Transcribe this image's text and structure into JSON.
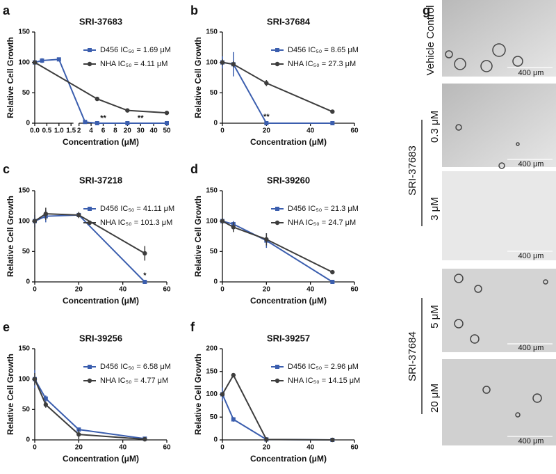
{
  "chart_data": [
    {
      "type": "line",
      "panel": "a",
      "title": "SRI-37683",
      "xlabel": "Concentration (μM)",
      "ylabel": "Relative Cell Growth",
      "ylim": [
        0,
        150
      ],
      "yticks": [
        0,
        50,
        100,
        150
      ],
      "x_segments": [
        {
          "xlim": [
            0,
            1.6
          ],
          "xticks": [
            {
              "value": 0,
              "label": "0.0"
            },
            0.5,
            {
              "value": 1,
              "label": "1.0"
            },
            1.5
          ]
        },
        {
          "xlim": [
            2,
            8
          ],
          "xticks": [
            2,
            4,
            6,
            8
          ]
        },
        {
          "xlim": [
            15,
            50
          ],
          "xticks": [
            20,
            30,
            40,
            50
          ]
        }
      ],
      "series": [
        {
          "name": "D456 IC₅₀ = 1.69 μM",
          "color": "#3b5eae",
          "marker": "square",
          "x": [
            0,
            0.3,
            1,
            3,
            5,
            20,
            50
          ],
          "values": [
            100,
            103,
            105,
            2,
            0,
            0,
            0
          ],
          "errors": [
            3,
            4,
            3,
            1,
            1,
            1,
            1
          ]
        },
        {
          "name": "NHA IC₅₀ = 4.11 μM",
          "color": "#3d3d3d",
          "marker": "circle",
          "x": [
            0,
            5,
            20,
            50
          ],
          "values": [
            100,
            40,
            21,
            17
          ],
          "errors": [
            2,
            2,
            1,
            1
          ]
        }
      ],
      "annotations": [
        {
          "text": "**",
          "x": 6,
          "y": 8
        },
        {
          "text": "**",
          "x": 30,
          "y": 8
        }
      ]
    },
    {
      "type": "line",
      "panel": "b",
      "title": "SRI-37684",
      "xlabel": "Concentration (μM)",
      "ylabel": "Relative Cell Growth",
      "xlim": [
        0,
        60
      ],
      "xticks": [
        0,
        20,
        40,
        60
      ],
      "ylim": [
        0,
        150
      ],
      "yticks": [
        0,
        50,
        100,
        150
      ],
      "series": [
        {
          "name": "D456 IC₅₀ = 8.65 μM",
          "color": "#3b5eae",
          "marker": "square",
          "x": [
            0,
            5,
            20,
            50
          ],
          "values": [
            100,
            97,
            0,
            0
          ],
          "errors": [
            10,
            20,
            1,
            1
          ]
        },
        {
          "name": "NHA IC₅₀ = 27.3 μM",
          "color": "#3d3d3d",
          "marker": "circle",
          "x": [
            0,
            5,
            20,
            50
          ],
          "values": [
            100,
            97,
            66,
            19
          ],
          "errors": [
            5,
            5,
            5,
            1
          ]
        }
      ],
      "annotations": [
        {
          "text": "**",
          "x": 20,
          "y": 10
        }
      ]
    },
    {
      "type": "line",
      "panel": "c",
      "title": "SRI-37218",
      "xlabel": "Concentration (μM)",
      "ylabel": "Relative Cell Growth",
      "xlim": [
        0,
        60
      ],
      "xticks": [
        0,
        20,
        40,
        60
      ],
      "ylim": [
        0,
        150
      ],
      "yticks": [
        0,
        50,
        100,
        150
      ],
      "series": [
        {
          "name": "D456 IC₅₀ = 41.11 μM",
          "color": "#3b5eae",
          "marker": "square",
          "x": [
            0,
            5,
            20,
            50
          ],
          "values": [
            100,
            108,
            110,
            0
          ],
          "errors": [
            10,
            10,
            3,
            1
          ]
        },
        {
          "name": "NHA IC₅₀ = 101.3 μM",
          "color": "#3d3d3d",
          "marker": "circle",
          "x": [
            0,
            5,
            20,
            50
          ],
          "values": [
            100,
            112,
            110,
            47
          ],
          "errors": [
            15,
            10,
            5,
            12
          ]
        }
      ],
      "annotations": [
        {
          "text": "*",
          "x": 50,
          "y": 10
        }
      ]
    },
    {
      "type": "line",
      "panel": "d",
      "title": "SRI-39260",
      "xlabel": "Concentration (μM)",
      "ylabel": "Relative Cell Growth",
      "xlim": [
        0,
        60
      ],
      "xticks": [
        0,
        20,
        40,
        60
      ],
      "ylim": [
        0,
        150
      ],
      "yticks": [
        0,
        50,
        100,
        150
      ],
      "series": [
        {
          "name": "D456 IC₅₀ = 21.3 μM",
          "color": "#3b5eae",
          "marker": "square",
          "x": [
            0,
            5,
            20,
            50
          ],
          "values": [
            100,
            95,
            68,
            0
          ],
          "errors": [
            5,
            5,
            12,
            1
          ]
        },
        {
          "name": "NHA IC₅₀ = 24.7 μM",
          "color": "#3d3d3d",
          "marker": "circle",
          "x": [
            0,
            5,
            20,
            50
          ],
          "values": [
            100,
            90,
            70,
            16
          ],
          "errors": [
            5,
            8,
            10,
            1
          ]
        }
      ]
    },
    {
      "type": "line",
      "panel": "e",
      "title": "SRI-39256",
      "xlabel": "Concentration (μM)",
      "ylabel": "Relative Cell Growth",
      "xlim": [
        0,
        60
      ],
      "xticks": [
        0,
        20,
        40,
        60
      ],
      "ylim": [
        0,
        150
      ],
      "yticks": [
        0,
        50,
        100,
        150
      ],
      "series": [
        {
          "name": "D456 IC₅₀ = 6.58 μM",
          "color": "#3b5eae",
          "marker": "square",
          "x": [
            0,
            5,
            20,
            50
          ],
          "values": [
            100,
            68,
            17,
            2
          ],
          "errors": [
            15,
            5,
            3,
            1
          ]
        },
        {
          "name": "NHA IC₅₀ = 4.77 μM",
          "color": "#3d3d3d",
          "marker": "circle",
          "x": [
            0,
            5,
            20,
            50
          ],
          "values": [
            100,
            58,
            9,
            1
          ],
          "errors": [
            10,
            5,
            8,
            1
          ]
        }
      ]
    },
    {
      "type": "line",
      "panel": "f",
      "title": "SRI-39257",
      "xlabel": "Concentration (μM)",
      "ylabel": "Relative Cell Growth",
      "xlim": [
        0,
        60
      ],
      "xticks": [
        0,
        20,
        40,
        60
      ],
      "ylim": [
        0,
        200
      ],
      "yticks": [
        0,
        50,
        100,
        150,
        200
      ],
      "series": [
        {
          "name": "D456 IC₅₀ = 2.96 μM",
          "color": "#3b5eae",
          "marker": "square",
          "x": [
            0,
            5,
            20,
            50
          ],
          "values": [
            100,
            45,
            1,
            0
          ],
          "errors": [
            15,
            5,
            1,
            1
          ]
        },
        {
          "name": "NHA IC₅₀ = 14.15 μM",
          "color": "#3d3d3d",
          "marker": "circle",
          "x": [
            0,
            5,
            20,
            50
          ],
          "values": [
            100,
            142,
            1,
            0
          ],
          "errors": [
            5,
            3,
            1,
            1
          ]
        }
      ]
    }
  ],
  "image_panel": {
    "label": "g",
    "row_label": "Vehicle Control",
    "scale_bars": [
      "400 μm",
      "400 μm",
      "400 μm",
      "400 μm",
      "400 μm"
    ],
    "groups": [
      {
        "name": "SRI-37683",
        "doses": [
          "0.3 μM",
          "3 μM"
        ]
      },
      {
        "name": "SRI-37684",
        "doses": [
          "5 μM",
          "20 μM"
        ]
      }
    ]
  }
}
